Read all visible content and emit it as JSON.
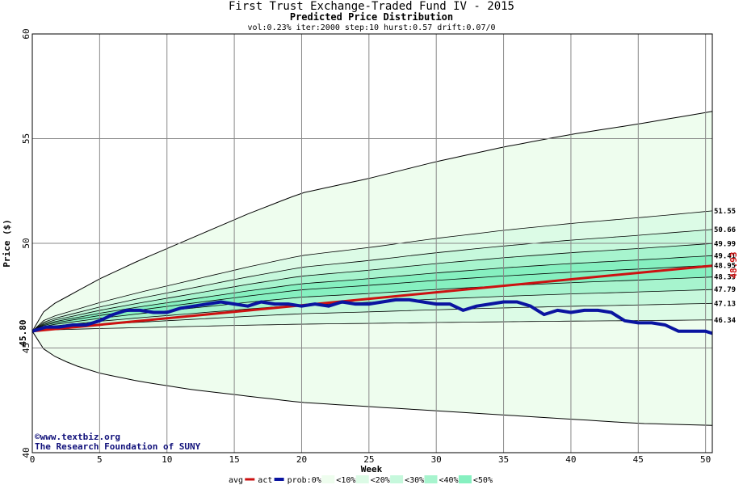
{
  "chart_data": {
    "type": "line",
    "title": "First Trust Exchange-Traded Fund IV - 2015",
    "subtitle": "Predicted Price Distribution",
    "params": "vol:0.23% iter:2000 step:10 hurst:0.57 drift:0.07/0",
    "xlabel": "Week",
    "ylabel": "Price ($)",
    "xlim": [
      0,
      50.5
    ],
    "ylim": [
      40,
      60
    ],
    "xticks": [
      0,
      5,
      10,
      15,
      20,
      25,
      30,
      35,
      40,
      45,
      50
    ],
    "yticks": [
      40,
      45,
      50,
      55,
      60
    ],
    "grid": true,
    "start_price": "45.80",
    "start_value": 45.8,
    "end_avg_label": "48.93",
    "end_avg_value": 48.93,
    "band_labels": [
      "51.55",
      "50.66",
      "49.99",
      "49.41",
      "48.95",
      "48.39",
      "47.79",
      "47.13",
      "46.34"
    ],
    "band_values": [
      51.55,
      50.66,
      49.99,
      49.41,
      48.95,
      48.39,
      47.79,
      47.13,
      46.34
    ],
    "envelope": {
      "weeks": [
        0,
        1,
        3,
        5,
        8,
        12,
        16,
        20,
        25,
        30,
        35,
        40,
        45,
        50.5
      ],
      "upper": [
        45.8,
        46.9,
        47.6,
        48.3,
        49.2,
        50.3,
        51.4,
        52.4,
        53.1,
        53.9,
        54.6,
        55.2,
        55.7,
        56.3
      ],
      "lower": [
        45.8,
        44.8,
        44.2,
        43.8,
        43.4,
        43.0,
        42.7,
        42.4,
        42.2,
        42.0,
        41.8,
        41.6,
        41.4,
        41.3
      ]
    },
    "series": [
      {
        "name": "avg",
        "color": "#cc1111",
        "x": [
          0,
          50.5
        ],
        "y": [
          45.8,
          48.93
        ]
      },
      {
        "name": "act",
        "color": "#0a14a0",
        "x": [
          0,
          1,
          2,
          3,
          4,
          5,
          6,
          7,
          8,
          9,
          10,
          11,
          12,
          13,
          14,
          15,
          16,
          17,
          18,
          19,
          20,
          21,
          22,
          23,
          24,
          25,
          26,
          27,
          28,
          29,
          30,
          31,
          32,
          33,
          34,
          35,
          36,
          37,
          38,
          39,
          40,
          41,
          42,
          43,
          44,
          45,
          46,
          47,
          48,
          49,
          50,
          50.5
        ],
        "y": [
          45.8,
          46.0,
          46.0,
          46.1,
          46.1,
          46.3,
          46.6,
          46.8,
          46.8,
          46.7,
          46.7,
          46.9,
          47.0,
          47.1,
          47.2,
          47.1,
          47.0,
          47.2,
          47.1,
          47.1,
          47.0,
          47.1,
          47.0,
          47.2,
          47.1,
          47.1,
          47.2,
          47.3,
          47.3,
          47.2,
          47.1,
          47.1,
          46.8,
          47.0,
          47.1,
          47.2,
          47.2,
          47.0,
          46.6,
          46.8,
          46.7,
          46.8,
          46.8,
          46.7,
          46.3,
          46.2,
          46.2,
          46.1,
          45.8,
          45.8,
          45.8,
          45.7
        ]
      }
    ],
    "watermark": [
      "©www.textbiz.org",
      "The Research Foundation of SUNY"
    ],
    "legend": [
      "avg",
      "act",
      "prob:0%",
      "<10%",
      "<20%",
      "<30%",
      "<40%",
      "<50%"
    ],
    "legend_position": "bottom",
    "colors": {
      "band_fill": [
        "#eefdee",
        "#dcfbe6",
        "#c6f8dc",
        "#a7f4ce",
        "#86f0c0",
        "#62eab0"
      ],
      "band_line": "#000000",
      "grid": "#888888"
    }
  }
}
